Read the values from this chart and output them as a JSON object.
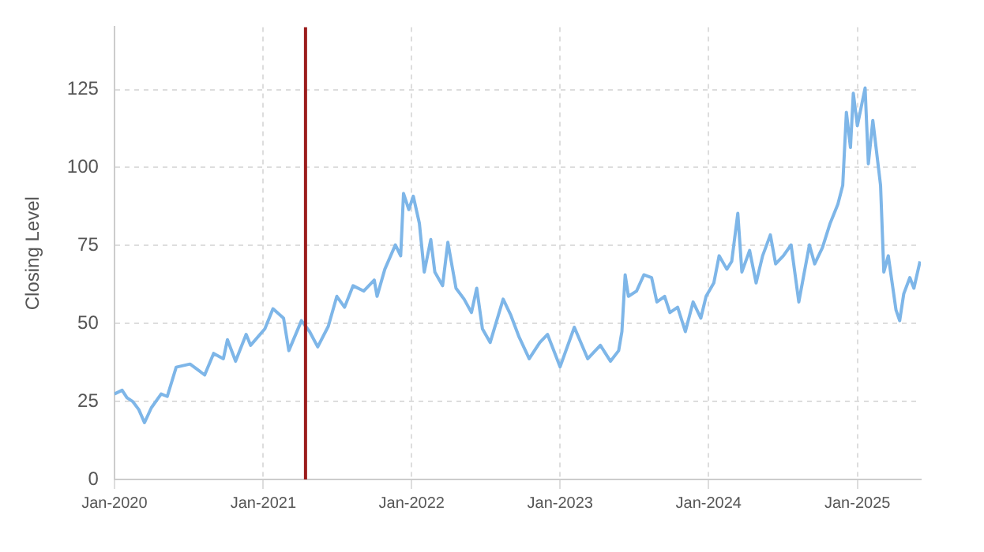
{
  "chart_data": {
    "type": "line",
    "ylabel": "Closing Level",
    "x": [
      "2020-01-01",
      "2020-01-20",
      "2020-02-01",
      "2020-02-15",
      "2020-03-01",
      "2020-03-15",
      "2020-04-01",
      "2020-04-25",
      "2020-05-10",
      "2020-06-01",
      "2020-07-05",
      "2020-08-10",
      "2020-09-01",
      "2020-09-25",
      "2020-10-05",
      "2020-10-25",
      "2020-11-20",
      "2020-12-01",
      "2021-01-05",
      "2021-01-25",
      "2021-02-20",
      "2021-03-05",
      "2021-04-05",
      "2021-04-25",
      "2021-05-15",
      "2021-06-10",
      "2021-07-01",
      "2021-07-20",
      "2021-08-10",
      "2021-09-05",
      "2021-10-01",
      "2021-10-08",
      "2021-10-27",
      "2021-11-22",
      "2021-12-05",
      "2021-12-12",
      "2021-12-25",
      "2022-01-05",
      "2022-01-20",
      "2022-02-01",
      "2022-02-17",
      "2022-02-27",
      "2022-03-18",
      "2022-03-31",
      "2022-04-20",
      "2022-05-10",
      "2022-05-28",
      "2022-06-10",
      "2022-06-24",
      "2022-07-13",
      "2022-08-14",
      "2022-09-02",
      "2022-09-22",
      "2022-10-17",
      "2022-11-12",
      "2022-12-01",
      "2023-01-01",
      "2023-02-05",
      "2023-03-10",
      "2023-04-10",
      "2023-05-05",
      "2023-05-25",
      "2023-06-02",
      "2023-06-10",
      "2023-06-18",
      "2023-07-08",
      "2023-07-26",
      "2023-08-14",
      "2023-08-27",
      "2023-09-15",
      "2023-09-28",
      "2023-10-17",
      "2023-11-05",
      "2023-11-24",
      "2023-12-13",
      "2023-12-26",
      "2024-01-14",
      "2024-01-27",
      "2024-02-15",
      "2024-02-27",
      "2024-03-13",
      "2024-03-23",
      "2024-04-11",
      "2024-04-27",
      "2024-05-13",
      "2024-06-01",
      "2024-06-14",
      "2024-07-03",
      "2024-07-22",
      "2024-08-10",
      "2024-09-05",
      "2024-09-18",
      "2024-10-07",
      "2024-10-26",
      "2024-11-14",
      "2024-11-26",
      "2024-12-05",
      "2024-12-15",
      "2024-12-22",
      "2025-01-01",
      "2025-01-20",
      "2025-01-28",
      "2025-02-08",
      "2025-02-27",
      "2025-03-07",
      "2025-03-18",
      "2025-04-06",
      "2025-04-15",
      "2025-04-25",
      "2025-05-10",
      "2025-05-20",
      "2025-06-04"
    ],
    "series": [
      {
        "color": "#7eb6e8",
        "values": [
          27.4,
          28.6,
          26.2,
          25,
          22.4,
          18.2,
          23,
          27.4,
          26.6,
          36,
          37,
          33.5,
          40.4,
          38.7,
          44.8,
          37.9,
          46.5,
          43,
          48.3,
          54.7,
          51.7,
          41.3,
          50.9,
          47.4,
          42.5,
          49.1,
          58.7,
          55.2,
          62.1,
          60.4,
          63.9,
          58.7,
          67.4,
          75.2,
          71.7,
          91.7,
          86.5,
          90.8,
          82.1,
          66.5,
          76.9,
          66.5,
          62.1,
          76,
          61.3,
          57.8,
          53.5,
          61.3,
          48.3,
          43.9,
          57.8,
          52.6,
          45.7,
          38.7,
          43.9,
          46.5,
          36.1,
          48.8,
          38.7,
          43,
          37.9,
          41.3,
          47.4,
          65.6,
          58.7,
          60.4,
          65.6,
          64.7,
          56.9,
          58.7,
          53.5,
          55.2,
          47.4,
          56.9,
          51.7,
          58.7,
          63,
          71.7,
          67.4,
          69.9,
          85.3,
          66.5,
          73.4,
          63,
          71.7,
          78.4,
          69.1,
          71.7,
          75.2,
          56.9,
          75.2,
          69.1,
          74.3,
          82.1,
          88.2,
          94.3,
          117.7,
          106.4,
          123.8,
          113.4,
          125.5,
          101.2,
          115.1,
          94.3,
          66.5,
          71.7,
          54.3,
          50.9,
          59.5,
          64.7,
          61.3,
          69.9
        ]
      }
    ],
    "xlim": [
      "2020-01-01",
      "2025-06-06"
    ],
    "xticks": [
      {
        "value": "2020-01-01",
        "label": "Jan-2020"
      },
      {
        "value": "2021-01-01",
        "label": "Jan-2021"
      },
      {
        "value": "2022-01-01",
        "label": "Jan-2022"
      },
      {
        "value": "2023-01-01",
        "label": "Jan-2023"
      },
      {
        "value": "2024-01-01",
        "label": "Jan-2024"
      },
      {
        "value": "2025-01-01",
        "label": "Jan-2025"
      }
    ],
    "ylim": [
      0,
      145
    ],
    "yticks": [
      0,
      25,
      50,
      75,
      100,
      125
    ],
    "grid": true,
    "line_style": "solid",
    "marker": "none",
    "ref_lines": [
      {
        "axis": "x",
        "value": "2021-04-15",
        "color": "#9b1c1c"
      }
    ]
  }
}
